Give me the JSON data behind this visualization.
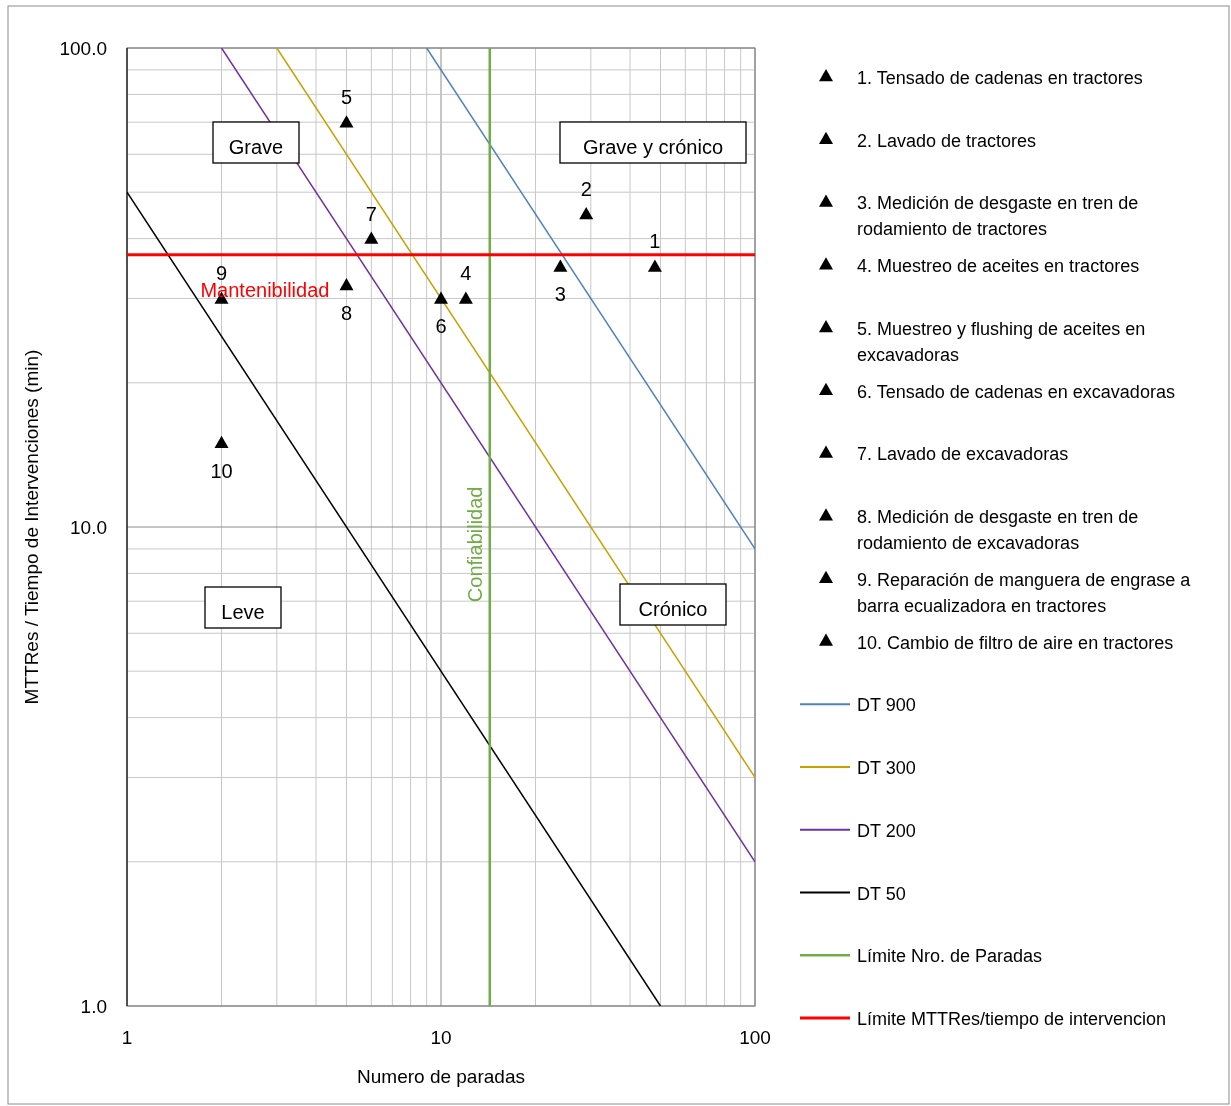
{
  "chart_data": {
    "type": "scatter",
    "xlabel": "Numero de paradas",
    "ylabel": "MTTRes / Tiempo de Intervenciones (min)",
    "log": "xy",
    "grid": true,
    "legend": "right",
    "xlim": [
      1,
      100
    ],
    "ylim": [
      1,
      100
    ],
    "xticks": [
      1,
      {
        "value": 2,
        "label": null
      },
      {
        "value": 3,
        "label": null
      },
      {
        "value": 4,
        "label": null
      },
      {
        "value": 5,
        "label": null
      },
      {
        "value": 6,
        "label": null
      },
      {
        "value": 7,
        "label": null
      },
      {
        "value": 8,
        "label": null
      },
      {
        "value": 9,
        "label": null
      },
      10,
      {
        "value": 20,
        "label": null
      },
      {
        "value": 30,
        "label": null
      },
      {
        "value": 40,
        "label": null
      },
      {
        "value": 50,
        "label": null
      },
      {
        "value": 60,
        "label": null
      },
      {
        "value": 70,
        "label": null
      },
      {
        "value": 80,
        "label": null
      },
      {
        "value": 90,
        "label": null
      },
      100
    ],
    "yticks": [
      {
        "value": 1,
        "label": "1.0"
      },
      {
        "value": 2,
        "label": null
      },
      {
        "value": 3,
        "label": null
      },
      {
        "value": 4,
        "label": null
      },
      {
        "value": 5,
        "label": null
      },
      {
        "value": 6,
        "label": null
      },
      {
        "value": 7,
        "label": null
      },
      {
        "value": 8,
        "label": null
      },
      {
        "value": 9,
        "label": null
      },
      {
        "value": 10,
        "label": "10.0"
      },
      {
        "value": 20,
        "label": null
      },
      {
        "value": 30,
        "label": null
      },
      {
        "value": 40,
        "label": null
      },
      {
        "value": 50,
        "label": null
      },
      {
        "value": 60,
        "label": null
      },
      {
        "value": 70,
        "label": null
      },
      {
        "value": 80,
        "label": null
      },
      {
        "value": 90,
        "label": null
      },
      {
        "value": 100,
        "label": "100.0"
      }
    ],
    "series": [
      {
        "name": "1. Tensado de cadenas en tractores",
        "marker": "triangle",
        "color": "#000000",
        "x": [
          48
        ],
        "values": [
          35
        ]
      },
      {
        "name": "2. Lavado de tractores",
        "type": "scatter",
        "marker": "triangle",
        "color": "#000000",
        "x": [
          29
        ],
        "values": [
          45
        ]
      },
      {
        "name": "3. Medición de desgaste en tren de rodamiento de tractores",
        "type": "scatter",
        "marker": "triangle",
        "color": "#000000",
        "x": [
          24
        ],
        "values": [
          35
        ]
      },
      {
        "name": "4. Muestreo de aceites en tractores",
        "type": "scatter",
        "marker": "triangle",
        "color": "#000000",
        "x": [
          12
        ],
        "values": [
          30
        ]
      },
      {
        "name": "5. Muestreo y flushing de aceites en excavadoras",
        "type": "scatter",
        "marker": "triangle",
        "color": "#000000",
        "x": [
          5
        ],
        "values": [
          70
        ]
      },
      {
        "name": "6. Tensado de cadenas en excavadoras",
        "type": "scatter",
        "marker": "triangle",
        "color": "#000000",
        "x": [
          10
        ],
        "values": [
          30
        ]
      },
      {
        "name": "7. Lavado de excavadoras",
        "type": "scatter",
        "marker": "triangle",
        "color": "#000000",
        "x": [
          6
        ],
        "values": [
          40
        ]
      },
      {
        "name": "8. Medición de desgaste en tren de rodamiento de excavadoras",
        "type": "scatter",
        "marker": "triangle",
        "color": "#000000",
        "x": [
          5
        ],
        "values": [
          32
        ]
      },
      {
        "name": "9. Reparación de manguera de engrase a barra ecualizadora en tractores",
        "type": "scatter",
        "marker": "triangle",
        "color": "#000000",
        "x": [
          2
        ],
        "values": [
          30
        ]
      },
      {
        "name": "10. Cambio de filtro de aire en tractores",
        "type": "scatter",
        "marker": "triangle",
        "color": "#000000",
        "x": [
          2
        ],
        "values": [
          15
        ]
      },
      {
        "name": "DT 900",
        "type": "line",
        "marker": "none",
        "color": "#4f81bd",
        "x": [
          9,
          100
        ],
        "values": [
          100,
          9
        ]
      },
      {
        "name": "DT 300",
        "type": "line",
        "marker": "none",
        "color": "#c9a000",
        "x": [
          3,
          100
        ],
        "values": [
          100,
          3
        ]
      },
      {
        "name": "DT 200",
        "type": "line",
        "marker": "none",
        "color": "#7030a0",
        "x": [
          2,
          100
        ],
        "values": [
          100,
          2
        ]
      },
      {
        "name": "DT 50",
        "type": "line",
        "marker": "none",
        "color": "#000000",
        "x": [
          1,
          50
        ],
        "values": [
          50,
          1
        ]
      },
      {
        "name": "Límite Nro. de Paradas",
        "type": "line",
        "marker": "none",
        "color": "#70ad47",
        "x": [
          14.3,
          14.3
        ],
        "values": [
          1,
          100
        ]
      },
      {
        "name": "Límite MTTRes/tiempo de intervencion",
        "type": "line",
        "marker": "none",
        "color": "#ff0000",
        "x": [
          1,
          100
        ],
        "values": [
          37,
          37
        ]
      }
    ],
    "annotations": [
      "Grave",
      "Grave y crónico",
      "Leve",
      "Crónico",
      {
        "text": "Mantenibilidad",
        "x": 2.75,
        "y": 37
      },
      {
        "text": "Confiabilidad",
        "x": 14.3,
        "y": 9.2
      },
      {
        "text": "1",
        "x": 48,
        "y": 35
      },
      {
        "text": "2",
        "x": 29,
        "y": 45
      },
      {
        "text": "3",
        "x": 24,
        "y": 35
      },
      {
        "text": "4",
        "x": 12,
        "y": 30
      },
      {
        "text": "5",
        "x": 5,
        "y": 70
      },
      {
        "text": "6",
        "x": 10,
        "y": 30
      },
      {
        "text": "7",
        "x": 6,
        "y": 40
      },
      {
        "text": "8",
        "x": 5,
        "y": 32
      },
      {
        "text": "9",
        "x": 2,
        "y": 30
      },
      {
        "text": "10",
        "x": 2,
        "y": 15
      }
    ]
  }
}
